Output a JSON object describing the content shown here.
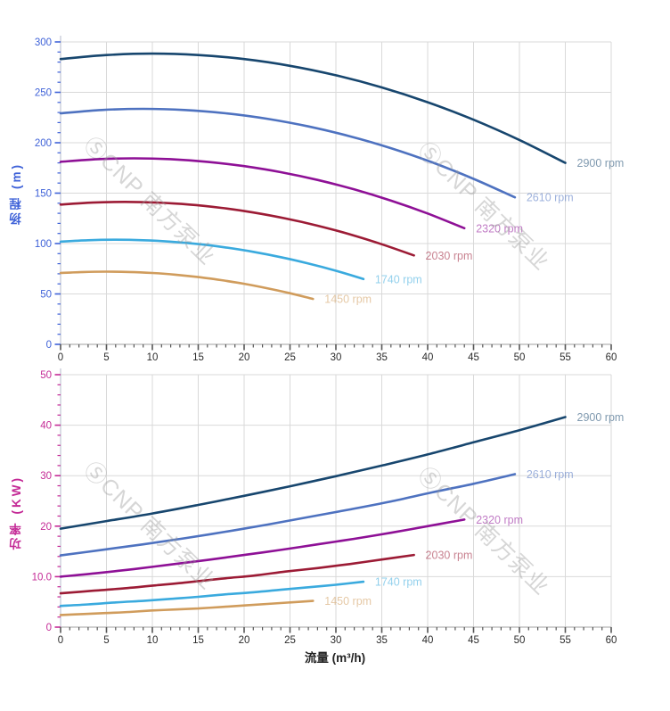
{
  "watermark": {
    "text": "ⓈCNP 南方泵业"
  },
  "chart_data": [
    {
      "type": "line",
      "title": "",
      "xlabel": "",
      "ylabel": "扬程 (m)",
      "xlim": [
        0,
        60
      ],
      "ylim": [
        0,
        300
      ],
      "grid": true,
      "legend_position": "line-end-labels",
      "x_tick_values": [
        0,
        5,
        10,
        15,
        20,
        25,
        30,
        35,
        40,
        45,
        50,
        55,
        60
      ],
      "x_tick_labels": [
        "0",
        "5",
        "10",
        "15",
        "20",
        "25",
        "30",
        "35",
        "40",
        "45",
        "50",
        "55",
        "60"
      ],
      "x_minor_tick_step": 1,
      "y_tick_values": [
        0,
        50,
        100,
        150,
        200,
        250,
        300
      ],
      "y_tick_labels": [
        "0",
        "50",
        "100",
        "150",
        "200",
        "250",
        "300"
      ],
      "y_minor_tick_step": 10,
      "axis_color": "#3f62d8",
      "series": [
        {
          "name": "2900 rpm",
          "color": "#17466e",
          "x": [
            0,
            5,
            10,
            15,
            20,
            25,
            30,
            35,
            40,
            45,
            50,
            55
          ],
          "y": [
            283,
            287,
            288.4,
            287,
            283,
            276.3,
            266.9,
            254.9,
            240.2,
            222.8,
            202.7,
            180
          ]
        },
        {
          "name": "2610 rpm",
          "color": "#4e72c0",
          "x": [
            0,
            4.5,
            9,
            13.5,
            18,
            22.5,
            27,
            31.5,
            36,
            40.5,
            45,
            49.5
          ],
          "y": [
            229.2,
            232.5,
            233.6,
            232.5,
            229.2,
            223.8,
            216.2,
            206.5,
            194.6,
            180.5,
            164.2,
            145.8
          ]
        },
        {
          "name": "2320 rpm",
          "color": "#8e1096",
          "x": [
            0,
            4,
            8,
            12,
            16,
            20,
            24,
            28,
            32,
            36,
            40,
            44
          ],
          "y": [
            181.1,
            183.7,
            184.5,
            183.7,
            181.1,
            176.8,
            170.8,
            163.1,
            153.7,
            142.6,
            129.8,
            115.2
          ]
        },
        {
          "name": "2030 rpm",
          "color": "#9c1b35",
          "x": [
            0,
            3.5,
            7,
            10.5,
            14,
            17.5,
            21,
            24.5,
            28,
            31.5,
            35,
            38.5
          ],
          "y": [
            138.7,
            140.6,
            141.3,
            140.6,
            138.7,
            135.4,
            130.8,
            124.9,
            117.7,
            109.2,
            99.3,
            88.2
          ]
        },
        {
          "name": "1740 rpm",
          "color": "#3aaade",
          "x": [
            0,
            3,
            6,
            9,
            12,
            15,
            18,
            21,
            24,
            27,
            30,
            33
          ],
          "y": [
            101.9,
            103.3,
            103.8,
            103.3,
            101.9,
            99.5,
            96.1,
            91.8,
            86.5,
            80.2,
            73,
            64.8
          ]
        },
        {
          "name": "1450 rpm",
          "color": "#d09c5c",
          "x": [
            0,
            2.5,
            5,
            7.5,
            10,
            12.5,
            15,
            17.5,
            20,
            22.5,
            25,
            27.5
          ],
          "y": [
            70.8,
            71.8,
            72.1,
            71.8,
            70.8,
            69.1,
            66.7,
            63.7,
            60.1,
            55.7,
            50.7,
            45
          ]
        }
      ]
    },
    {
      "type": "line",
      "title": "",
      "xlabel": "流量 (m³/h)",
      "ylabel": "功率 (KW)",
      "xlim": [
        0,
        60
      ],
      "ylim": [
        0,
        50
      ],
      "grid": true,
      "legend_position": "line-end-labels",
      "x_tick_values": [
        0,
        5,
        10,
        15,
        20,
        25,
        30,
        35,
        40,
        45,
        50,
        55,
        60
      ],
      "x_tick_labels": [
        "0",
        "5",
        "10",
        "15",
        "20",
        "25",
        "30",
        "35",
        "40",
        "45",
        "50",
        "55",
        "60"
      ],
      "x_minor_tick_step": 1,
      "y_tick_values": [
        0,
        10,
        20,
        30,
        40,
        50
      ],
      "y_tick_labels": [
        "0",
        "10.0",
        "20",
        "30",
        "40",
        "50"
      ],
      "y_minor_tick_step": 2,
      "axis_color": "#c42a96",
      "series": [
        {
          "name": "2900 rpm",
          "color": "#17466e",
          "x": [
            0,
            5,
            10,
            15,
            20,
            25,
            30,
            35,
            40,
            45,
            50,
            55
          ],
          "y": [
            19.5,
            21,
            22.5,
            24.2,
            26,
            27.9,
            29.9,
            32,
            34.2,
            36.6,
            39,
            41.6
          ]
        },
        {
          "name": "2610 rpm",
          "color": "#4e72c0",
          "x": [
            0,
            4.5,
            9,
            13.5,
            18,
            22.5,
            27,
            31.5,
            36,
            40.5,
            45,
            49.5
          ],
          "y": [
            14.2,
            15.3,
            16.4,
            17.6,
            18.9,
            20.3,
            21.8,
            23.3,
            24.9,
            26.7,
            28.4,
            30.3
          ]
        },
        {
          "name": "2320 rpm",
          "color": "#8e1096",
          "x": [
            0,
            4,
            8,
            12,
            16,
            20,
            24,
            28,
            32,
            36,
            40,
            44
          ],
          "y": [
            10,
            10.7,
            11.5,
            12.4,
            13.3,
            14.3,
            15.3,
            16.4,
            17.5,
            18.7,
            20,
            21.3
          ]
        },
        {
          "name": "2030 rpm",
          "color": "#9c1b35",
          "x": [
            0,
            3.5,
            7,
            10.5,
            14,
            17.5,
            21,
            24.5,
            28,
            31.5,
            35,
            38.5
          ],
          "y": [
            6.7,
            7.2,
            7.7,
            8.3,
            8.9,
            9.6,
            10.2,
            11,
            11.7,
            12.5,
            13.4,
            14.3
          ]
        },
        {
          "name": "1740 rpm",
          "color": "#3aaade",
          "x": [
            0,
            3,
            6,
            9,
            12,
            15,
            18,
            21,
            24,
            27,
            30,
            33
          ],
          "y": [
            4.2,
            4.5,
            4.9,
            5.2,
            5.6,
            6,
            6.5,
            6.9,
            7.4,
            7.9,
            8.4,
            9
          ]
        },
        {
          "name": "1450 rpm",
          "color": "#d09c5c",
          "x": [
            0,
            2.5,
            5,
            7.5,
            10,
            12.5,
            15,
            17.5,
            20,
            22.5,
            25,
            27.5
          ],
          "y": [
            2.4,
            2.6,
            2.8,
            3,
            3.3,
            3.5,
            3.7,
            4,
            4.3,
            4.6,
            4.9,
            5.2
          ]
        }
      ]
    }
  ]
}
